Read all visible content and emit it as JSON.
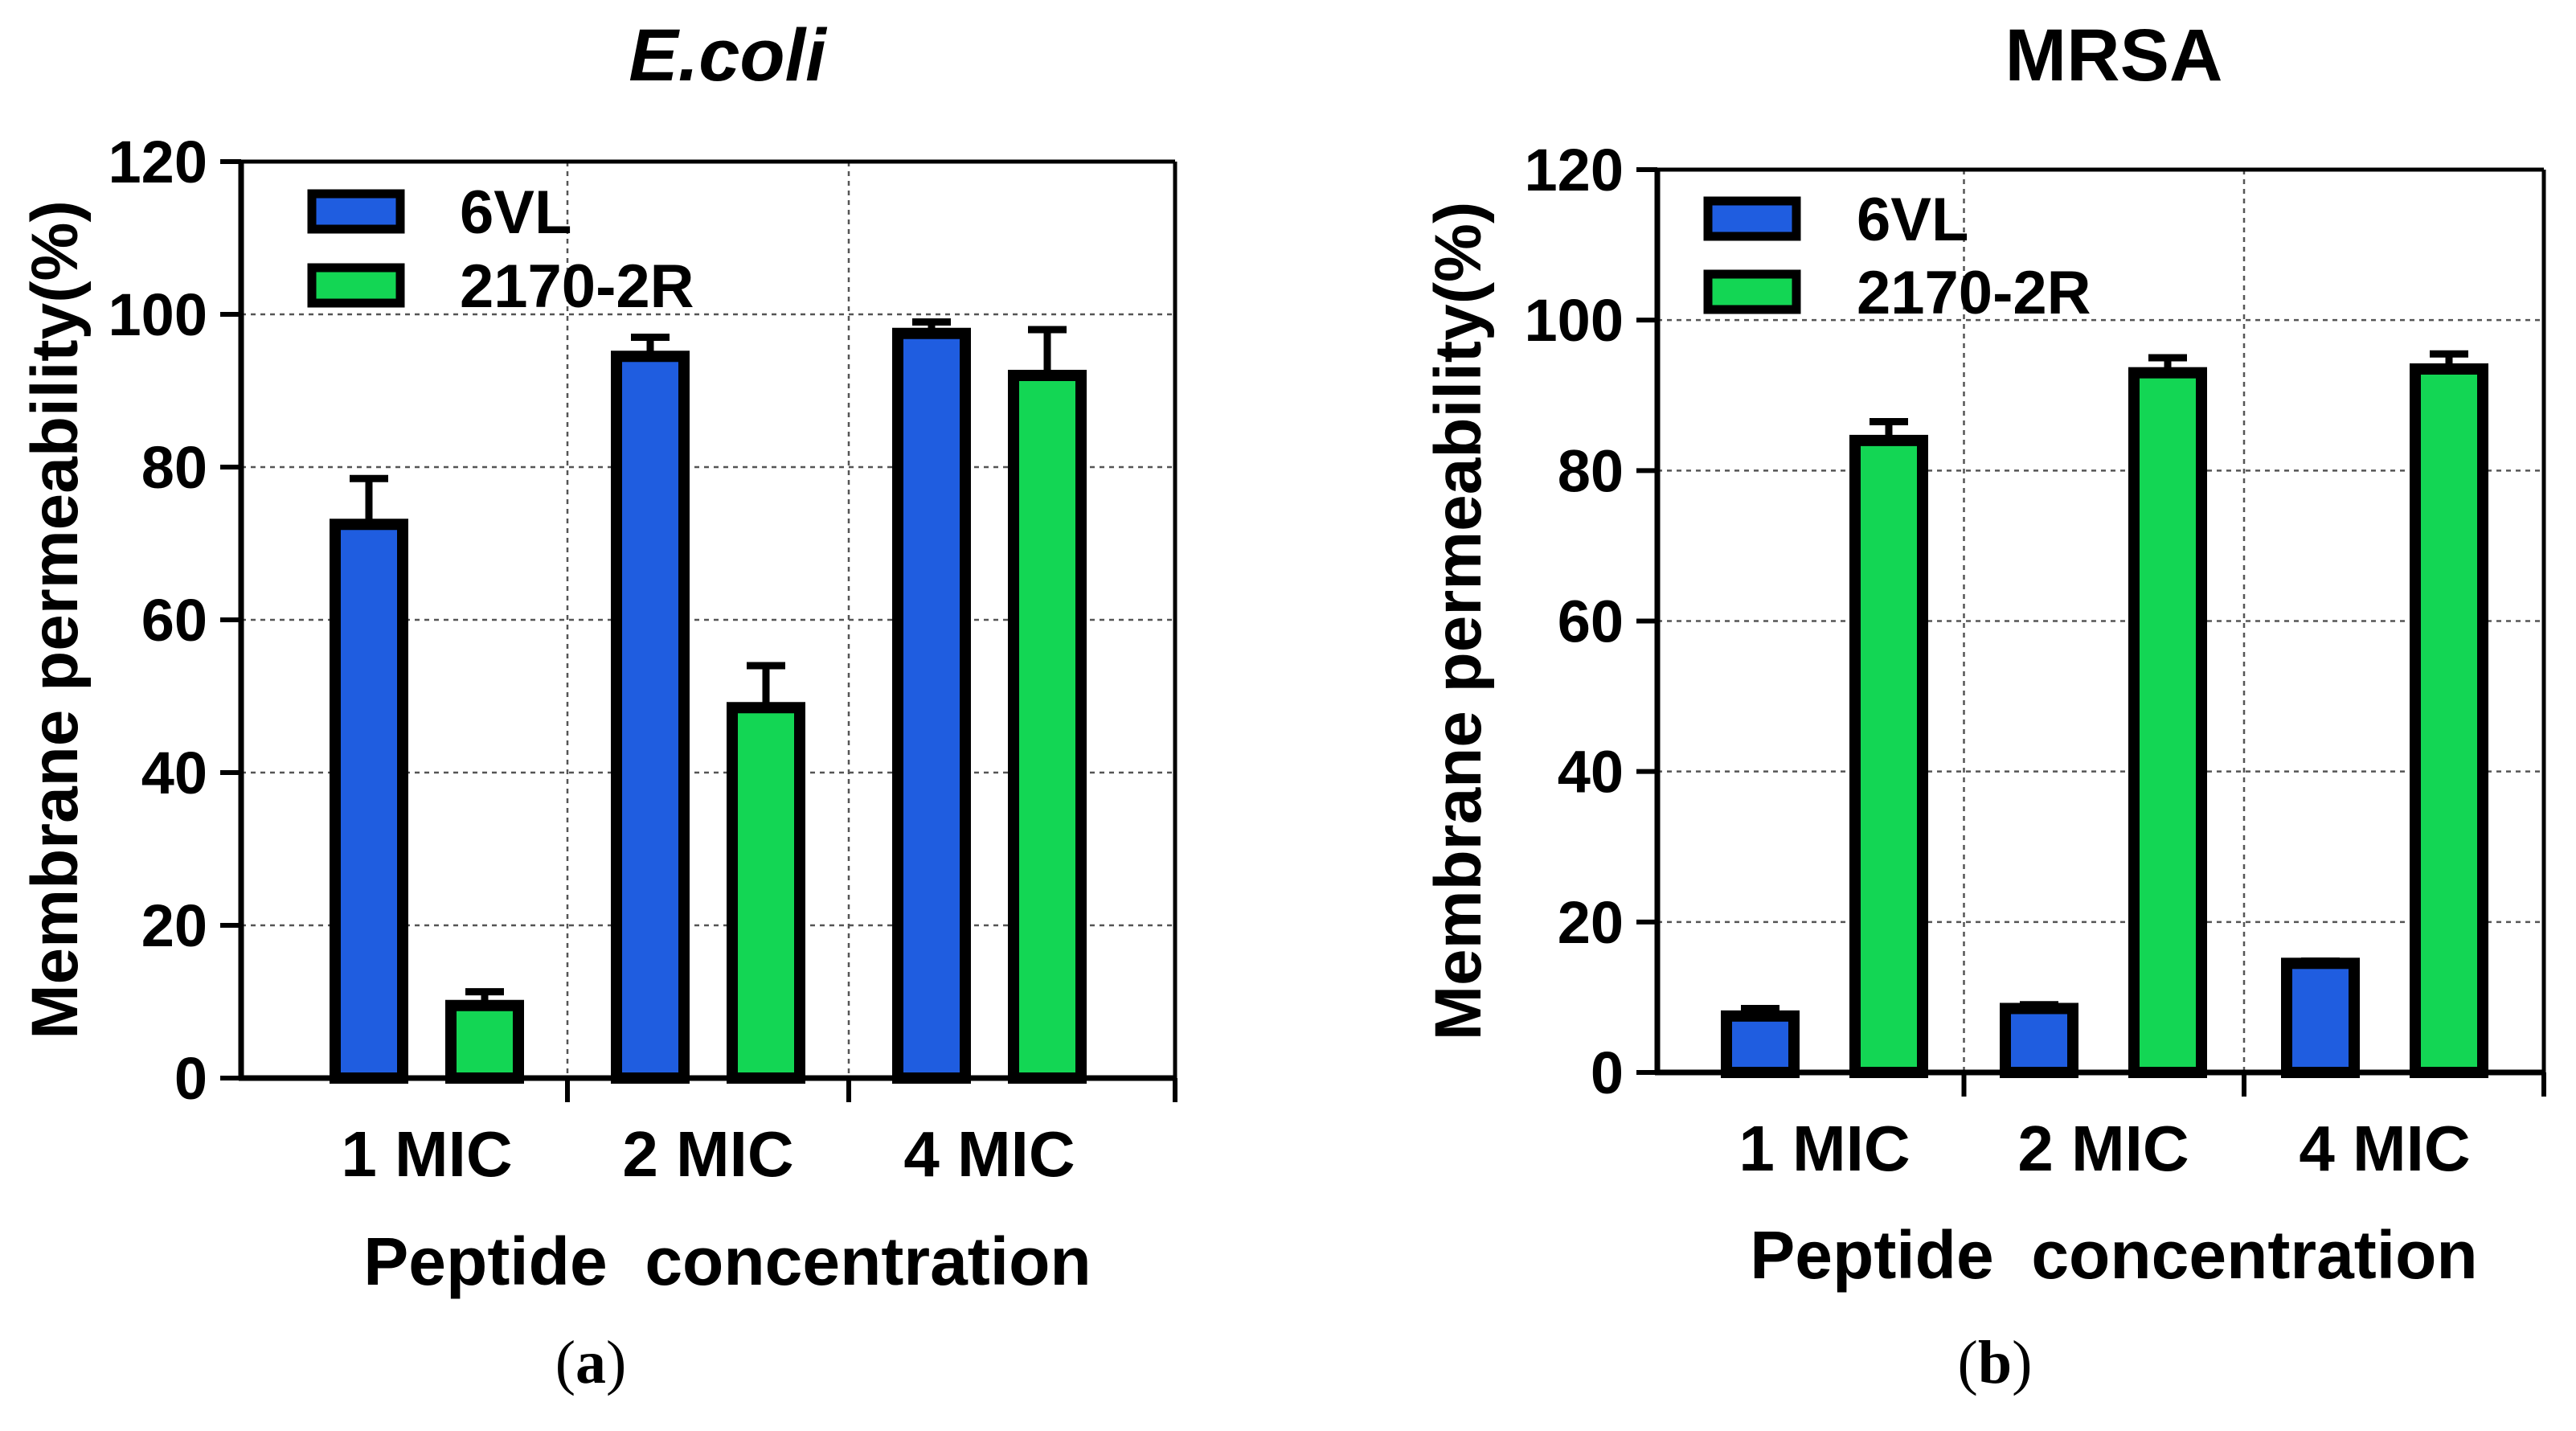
{
  "colors": {
    "series_6VL": "#1f5de0",
    "series_2170_2R": "#13d654",
    "axis": "#000000",
    "grid": "#555555"
  },
  "chart_data": [
    {
      "type": "bar",
      "panel_label": "(a)",
      "panel_letter": "a",
      "title": "E.coli",
      "title_italic": true,
      "xlabel": "Peptide  concentration",
      "ylabel": "Membrane permeability(%)",
      "ylim": [
        0,
        120
      ],
      "yticks": [
        "0",
        "20",
        "40",
        "60",
        "80",
        "100",
        "120"
      ],
      "grid": true,
      "legend_position": "top-left",
      "categories": [
        "1 MIC",
        "2 MIC",
        "4 MIC"
      ],
      "series": [
        {
          "name": "6VL",
          "values": [
            72.5,
            94.5,
            97.5
          ],
          "errors": [
            6,
            2.5,
            1.5
          ]
        },
        {
          "name": "2170-2R",
          "values": [
            9.5,
            48.5,
            92
          ],
          "errors": [
            1.8,
            5.5,
            6
          ]
        }
      ]
    },
    {
      "type": "bar",
      "panel_label": "(b)",
      "panel_letter": "b",
      "title": "MRSA",
      "title_italic": false,
      "xlabel": "Peptide  concentration",
      "ylabel": "Membrane permeability(%)",
      "ylim": [
        0,
        120
      ],
      "yticks": [
        "0",
        "20",
        "40",
        "60",
        "80",
        "100",
        "120"
      ],
      "grid": true,
      "legend_position": "top-left",
      "categories": [
        "1 MIC",
        "2 MIC",
        "4 MIC"
      ],
      "series": [
        {
          "name": "6VL",
          "values": [
            7.5,
            8.5,
            14.5
          ],
          "errors": [
            1,
            0.5,
            0.3
          ]
        },
        {
          "name": "2170-2R",
          "values": [
            84,
            93,
            93.5
          ],
          "errors": [
            2.5,
            2,
            2
          ]
        }
      ]
    }
  ]
}
